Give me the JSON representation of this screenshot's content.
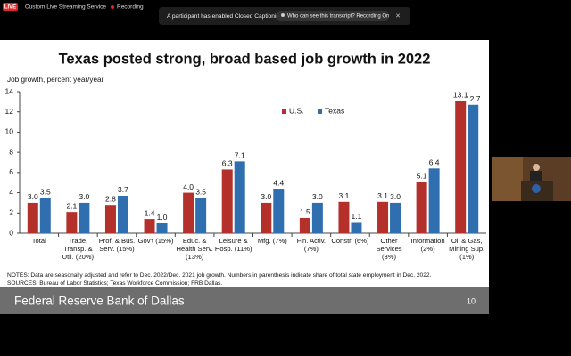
{
  "ui": {
    "live_badge": "LIVE",
    "stream": "Custom Live Streaming Service",
    "recording": "Recording",
    "notice": "A participant has enabled Closed Captioning",
    "transcript_button": "Who can see this transcript? Recording On"
  },
  "slide": {
    "footer": "Federal Reserve Bank of Dallas",
    "page": "10"
  },
  "chart_data": {
    "type": "bar",
    "title": "Texas posted strong, broad based job growth in 2022",
    "y_label": "Job growth, percent year/year",
    "categories": [
      "Total",
      "Trade, Transp. & Util. (20%)",
      "Prof. & Bus. Serv. (15%)",
      "Gov't (15%)",
      "Educ. & Health Serv. (13%)",
      "Leisure & Hosp. (11%)",
      "Mfg. (7%)",
      "Fin. Activ. (7%)",
      "Constr. (6%)",
      "Other Services (3%)",
      "Information (2%)",
      "Oil & Gas, Mining Sup. (1%)"
    ],
    "series": [
      {
        "name": "U.S.",
        "color": "#b3302b",
        "values": [
          3.0,
          2.1,
          2.8,
          1.4,
          4.0,
          6.3,
          3.0,
          1.5,
          3.1,
          3.1,
          5.1,
          13.1
        ],
        "value_labels": [
          "3.0",
          "2.1",
          "2.8",
          "1.4",
          "4.0",
          "6.3",
          "3.0",
          "1.5",
          "3.1",
          "3.1",
          "5.1",
          "13.1"
        ]
      },
      {
        "name": "Texas",
        "color": "#2f6fb0",
        "values": [
          3.5,
          3.0,
          3.7,
          1.0,
          3.5,
          7.1,
          4.4,
          3.0,
          1.1,
          3.0,
          6.4,
          12.7
        ],
        "value_labels": [
          "3.5",
          "3.0",
          "3.7",
          "1.0",
          "3.5",
          "7.1",
          "4.4",
          "3.0",
          "1.1",
          "3.0",
          "6.4",
          "12.7"
        ]
      }
    ],
    "ylim": [
      0,
      14
    ],
    "yticks": [
      0,
      2,
      4,
      6,
      8,
      10,
      12,
      14
    ],
    "grid": false,
    "legend": "top",
    "notes": [
      "NOTES: Data are seasonally adjusted and refer to Dec. 2022/Dec. 2021 job growth. Numbers in parenthesis indicate share of total state employment in Dec. 2022.",
      "SOURCES: Bureau of Labor Statistics; Texas Workforce Commission; FRB Dallas."
    ]
  }
}
